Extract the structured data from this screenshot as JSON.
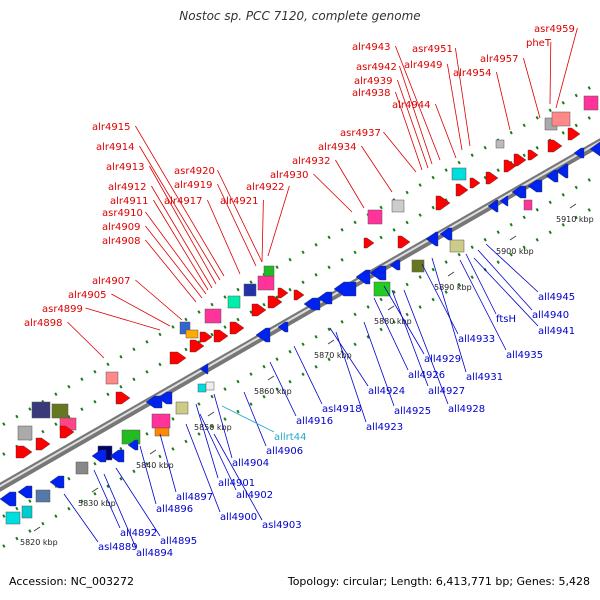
{
  "title": "Nostoc sp. PCC 7120, complete genome",
  "footer": {
    "accession": "Accession: NC_003272",
    "summary": "Topology: circular; Length: 6,413,771 bp; Genes: 5,428"
  },
  "colors": {
    "top_strand_label": "#dd0000",
    "bottom_strand_label": "#0000cc",
    "highlight_label": "#22aacc",
    "scale_tick": "#1a7a1a",
    "backbone": "#888888"
  },
  "kbp_ticks": [
    "5820 kbp",
    "5830 kbp",
    "5840 kbp",
    "5850 kbp",
    "5860 kbp",
    "5870 kbp",
    "5880 kbp",
    "5890 kbp",
    "5900 kbp",
    "5910 kbp"
  ],
  "top_labels": [
    "asr4959",
    "pheT",
    "alr4957",
    "alr4954",
    "asr4951",
    "alr4949",
    "alr4943",
    "asr4942",
    "alr4939",
    "alr4938",
    "alr4944",
    "asr4937",
    "alr4934",
    "alr4932",
    "alr4930",
    "alr4915",
    "alr4914",
    "alr4913",
    "alr4912",
    "alr4911",
    "asr4910",
    "alr4909",
    "alr4908",
    "asr4920",
    "alr4919",
    "alr4917",
    "alr4922",
    "alr4921",
    "alr4907",
    "alr4905",
    "asr4899",
    "alr4898"
  ],
  "bottom_labels": [
    "all4945",
    "all4940",
    "ftsH",
    "all4941",
    "all4933",
    "all4935",
    "all4929",
    "all4931",
    "all4926",
    "all4927",
    "all4928",
    "all4924",
    "all4925",
    "asl4918",
    "all4916",
    "all4923",
    "all4906",
    "all4904",
    "all4901",
    "all4902",
    "all4897",
    "all4896",
    "all4900",
    "asl4903",
    "all4892",
    "all4895",
    "all4894",
    "asl4889"
  ],
  "highlight_labels": [
    "allrt44"
  ]
}
